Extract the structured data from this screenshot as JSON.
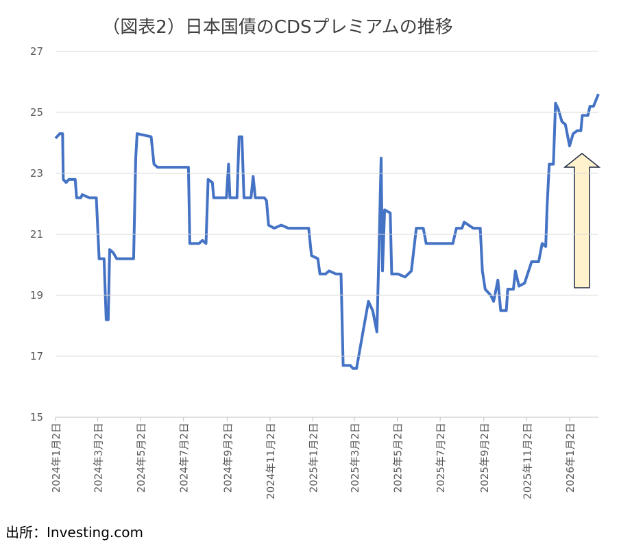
{
  "chart_data": {
    "type": "line",
    "title": "（図表2）日本国債のCDSプレミアムの推移",
    "source": "出所：Investing.com",
    "x": [
      "2024-01-02",
      "2024-01-08",
      "2024-01-12",
      "2024-01-13",
      "2024-01-17",
      "2024-01-21",
      "2024-01-30",
      "2024-02-01",
      "2024-02-07",
      "2024-02-09",
      "2024-02-19",
      "2024-02-29",
      "2024-03-04",
      "2024-03-11",
      "2024-03-14",
      "2024-03-17",
      "2024-03-19",
      "2024-03-24",
      "2024-03-29",
      "2024-04-08",
      "2024-04-22",
      "2024-04-25",
      "2024-04-27",
      "2024-05-17",
      "2024-05-21",
      "2024-05-26",
      "2024-06-25",
      "2024-07-09",
      "2024-07-11",
      "2024-07-24",
      "2024-07-29",
      "2024-08-03",
      "2024-08-06",
      "2024-08-12",
      "2024-08-14",
      "2024-09-01",
      "2024-09-04",
      "2024-09-06",
      "2024-09-16",
      "2024-09-19",
      "2024-09-23",
      "2024-09-26",
      "2024-10-06",
      "2024-10-09",
      "2024-10-12",
      "2024-10-25",
      "2024-10-28",
      "2024-10-31",
      "2024-11-08",
      "2024-11-18",
      "2024-11-28",
      "2024-12-17",
      "2024-12-27",
      "2024-12-31",
      "2025-01-09",
      "2025-01-12",
      "2025-01-20",
      "2025-01-25",
      "2025-02-04",
      "2025-02-11",
      "2025-02-14",
      "2025-02-24",
      "2025-02-28",
      "2025-03-05",
      "2025-03-15",
      "2025-03-22",
      "2025-03-28",
      "2025-04-03",
      "2025-04-06",
      "2025-04-09",
      "2025-04-11",
      "2025-04-14",
      "2025-04-22",
      "2025-04-24",
      "2025-05-03",
      "2025-05-13",
      "2025-05-22",
      "2025-05-29",
      "2025-06-08",
      "2025-06-12",
      "2025-06-23",
      "2025-06-30",
      "2025-07-20",
      "2025-07-25",
      "2025-08-02",
      "2025-08-05",
      "2025-08-18",
      "2025-08-28",
      "2025-08-31",
      "2025-09-04",
      "2025-09-12",
      "2025-09-16",
      "2025-09-22",
      "2025-09-26",
      "2025-10-04",
      "2025-10-06",
      "2025-10-14",
      "2025-10-17",
      "2025-10-22",
      "2025-10-30",
      "2025-11-09",
      "2025-11-19",
      "2025-11-24",
      "2025-11-29",
      "2025-12-01",
      "2025-12-04",
      "2025-12-10",
      "2025-12-13",
      "2025-12-17",
      "2025-12-22",
      "2025-12-27",
      "2026-01-02",
      "2026-01-07",
      "2026-01-13",
      "2026-01-18",
      "2026-01-20",
      "2026-01-28",
      "2026-01-31",
      "2026-02-05",
      "2026-02-12"
    ],
    "series": [
      {
        "name": "日本国債CDS",
        "color": "#4472c4",
        "values": [
          24.15,
          24.3,
          24.3,
          22.8,
          22.7,
          22.8,
          22.8,
          22.2,
          22.2,
          22.3,
          22.2,
          22.2,
          20.2,
          20.2,
          18.2,
          18.2,
          20.5,
          20.4,
          20.2,
          20.2,
          20.2,
          23.5,
          24.3,
          24.2,
          23.3,
          23.2,
          23.2,
          23.2,
          20.7,
          20.7,
          20.8,
          20.7,
          22.8,
          22.7,
          22.2,
          22.2,
          23.3,
          22.2,
          22.2,
          24.2,
          24.2,
          22.2,
          22.2,
          22.9,
          22.2,
          22.2,
          22.1,
          21.3,
          21.2,
          21.3,
          21.2,
          21.2,
          21.2,
          20.3,
          20.2,
          19.7,
          19.7,
          19.8,
          19.7,
          19.7,
          16.7,
          16.7,
          16.6,
          16.6,
          17.9,
          18.8,
          18.5,
          17.8,
          20.5,
          23.5,
          19.8,
          21.8,
          21.7,
          19.7,
          19.7,
          19.6,
          19.8,
          21.2,
          21.2,
          20.7,
          20.7,
          20.7,
          20.7,
          21.2,
          21.2,
          21.4,
          21.2,
          21.2,
          19.8,
          19.2,
          19.0,
          18.8,
          19.5,
          18.5,
          18.5,
          19.2,
          19.2,
          19.8,
          19.3,
          19.4,
          20.1,
          20.1,
          20.7,
          20.6,
          21.9,
          23.3,
          23.3,
          25.3,
          25.1,
          24.7,
          24.6,
          23.9,
          24.3,
          24.4,
          24.4,
          24.9,
          24.9,
          25.2,
          25.2,
          25.6
        ]
      }
    ],
    "xlim": [
      "2024-01-02",
      "2026-02-12"
    ],
    "xticks": [
      {
        "value": "2024-01-02",
        "label": "2024年1月2日"
      },
      {
        "value": "2024-03-02",
        "label": "2024年3月2日"
      },
      {
        "value": "2024-05-02",
        "label": "2024年5月2日"
      },
      {
        "value": "2024-07-02",
        "label": "2024年7月2日"
      },
      {
        "value": "2024-09-02",
        "label": "2024年9月2日"
      },
      {
        "value": "2024-11-02",
        "label": "2024年11月2日"
      },
      {
        "value": "2025-01-02",
        "label": "2025年1月2日"
      },
      {
        "value": "2025-03-02",
        "label": "2025年3月2日"
      },
      {
        "value": "2025-05-02",
        "label": "2025年5月2日"
      },
      {
        "value": "2025-07-02",
        "label": "2025年7月2日"
      },
      {
        "value": "2025-09-02",
        "label": "2025年9月2日"
      },
      {
        "value": "2025-11-02",
        "label": "2025年11月2日"
      },
      {
        "value": "2026-01-02",
        "label": "2026年1月2日"
      }
    ],
    "ylim": [
      15,
      27
    ],
    "yticks": [
      15,
      17,
      19,
      21,
      23,
      25,
      27
    ],
    "grid": true
  }
}
